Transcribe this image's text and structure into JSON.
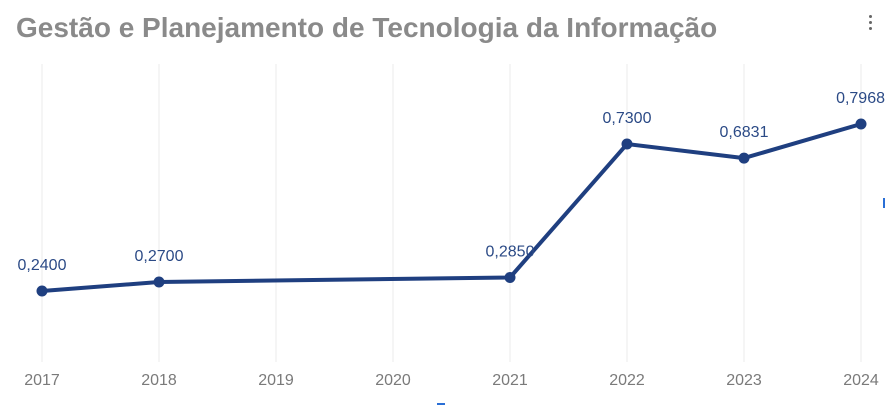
{
  "header": {
    "title": "Gestão e Planejamento de Tecnologia da Informação",
    "menu_icon": "kebab-vertical-icon"
  },
  "colors": {
    "line": "#1f3f80",
    "grid": "#ebebeb",
    "title": "#8a8a8a"
  },
  "chart_data": {
    "type": "line",
    "title": "Gestão e Planejamento de Tecnologia da Informação",
    "xlabel": "",
    "ylabel": "",
    "grid": "vertical",
    "legend": "none",
    "categories": [
      "2017",
      "2018",
      "2019",
      "2020",
      "2021",
      "2022",
      "2023",
      "2024"
    ],
    "series": [
      {
        "points": [
          {
            "x": "2017",
            "y": 0.24,
            "label": "0,2400"
          },
          {
            "x": "2018",
            "y": 0.27,
            "label": "0,2700"
          },
          {
            "x": "2021",
            "y": 0.285,
            "label": "0,2850"
          },
          {
            "x": "2022",
            "y": 0.73,
            "label": "0,7300"
          },
          {
            "x": "2023",
            "y": 0.6831,
            "label": "0,6831"
          },
          {
            "x": "2024",
            "y": 0.7968,
            "label": "0,7968"
          }
        ]
      }
    ]
  }
}
